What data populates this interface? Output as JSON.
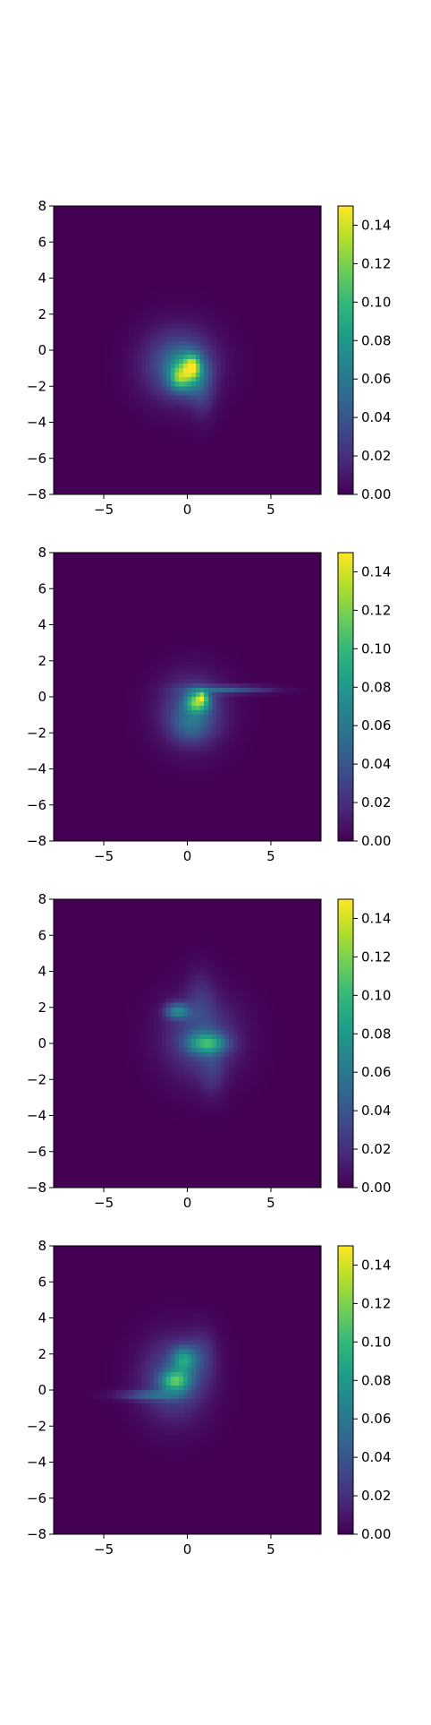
{
  "figure": {
    "title": ""
  },
  "colormap": {
    "name": "viridis",
    "stops": [
      "#440154",
      "#482878",
      "#3e4989",
      "#31688e",
      "#26828e",
      "#1f9e89",
      "#35b779",
      "#6ece58",
      "#b5de2b",
      "#fde725"
    ]
  },
  "chart_data": [
    {
      "type": "heatmap",
      "title": "",
      "xlabel": "",
      "ylabel": "",
      "xlim": [
        -8,
        8
      ],
      "ylim": [
        -8,
        8
      ],
      "x_ticks": [
        -5,
        0,
        5
      ],
      "x_tick_labels": [
        "−5",
        "0",
        "5"
      ],
      "y_ticks": [
        -8,
        -6,
        -4,
        -2,
        0,
        2,
        4,
        6,
        8
      ],
      "y_tick_labels": [
        "−8",
        "−6",
        "−4",
        "−2",
        "0",
        "2",
        "4",
        "6",
        "8"
      ],
      "colorbar": {
        "min": 0.0,
        "max": 0.15,
        "ticks": [
          0.0,
          0.02,
          0.04,
          0.06,
          0.08,
          0.1,
          0.12,
          0.14
        ],
        "tick_labels": [
          "0.00",
          "0.02",
          "0.04",
          "0.06",
          "0.08",
          "0.10",
          "0.12",
          "0.14"
        ]
      },
      "blobs": [
        {
          "x": -0.5,
          "y": -0.8,
          "sx": 1.4,
          "sy": 1.3,
          "value": 0.05
        },
        {
          "x": 0.0,
          "y": -1.2,
          "sx": 0.7,
          "sy": 0.7,
          "value": 0.07
        },
        {
          "x": 0.3,
          "y": -0.9,
          "sx": 0.3,
          "sy": 0.4,
          "value": 0.06
        },
        {
          "x": -0.5,
          "y": -1.6,
          "sx": 0.4,
          "sy": 0.4,
          "value": 0.04
        },
        {
          "x": 0.9,
          "y": -2.4,
          "sx": 0.5,
          "sy": 1.0,
          "value": 0.018
        }
      ]
    },
    {
      "type": "heatmap",
      "title": "",
      "xlabel": "",
      "ylabel": "",
      "xlim": [
        -8,
        8
      ],
      "ylim": [
        -8,
        8
      ],
      "x_ticks": [
        -5,
        0,
        5
      ],
      "x_tick_labels": [
        "−5",
        "0",
        "5"
      ],
      "y_ticks": [
        -8,
        -6,
        -4,
        -2,
        0,
        2,
        4,
        6,
        8
      ],
      "y_tick_labels": [
        "−8",
        "−6",
        "−4",
        "−2",
        "0",
        "2",
        "4",
        "6",
        "8"
      ],
      "colorbar": {
        "min": 0.0,
        "max": 0.15,
        "ticks": [
          0.0,
          0.02,
          0.04,
          0.06,
          0.08,
          0.1,
          0.12,
          0.14
        ],
        "tick_labels": [
          "0.00",
          "0.02",
          "0.04",
          "0.06",
          "0.08",
          "0.10",
          "0.12",
          "0.14"
        ]
      },
      "blobs": [
        {
          "x": 0.3,
          "y": -0.8,
          "sx": 1.3,
          "sy": 1.3,
          "value": 0.04
        },
        {
          "x": 0.6,
          "y": -0.3,
          "sx": 0.5,
          "sy": 0.4,
          "value": 0.09
        },
        {
          "x": 0.9,
          "y": 0.0,
          "sx": 0.2,
          "sy": 0.2,
          "value": 0.06
        },
        {
          "x": 2.5,
          "y": 0.4,
          "sx": 1.7,
          "sy": 0.15,
          "value": 0.04
        },
        {
          "x": 0.2,
          "y": -1.6,
          "sx": 0.8,
          "sy": 0.6,
          "value": 0.025
        }
      ]
    },
    {
      "type": "heatmap",
      "title": "",
      "xlabel": "",
      "ylabel": "",
      "xlim": [
        -8,
        8
      ],
      "ylim": [
        -8,
        8
      ],
      "x_ticks": [
        -5,
        0,
        5
      ],
      "x_tick_labels": [
        "−5",
        "0",
        "5"
      ],
      "y_ticks": [
        -8,
        -6,
        -4,
        -2,
        0,
        2,
        4,
        6,
        8
      ],
      "y_tick_labels": [
        "−8",
        "−6",
        "−4",
        "−2",
        "0",
        "2",
        "4",
        "6",
        "8"
      ],
      "colorbar": {
        "min": 0.0,
        "max": 0.15,
        "ticks": [
          0.0,
          0.02,
          0.04,
          0.06,
          0.08,
          0.1,
          0.12,
          0.14
        ],
        "tick_labels": [
          "0.00",
          "0.02",
          "0.04",
          "0.06",
          "0.08",
          "0.10",
          "0.12",
          "0.14"
        ]
      },
      "blobs": [
        {
          "x": 0.8,
          "y": 0.3,
          "sx": 1.5,
          "sy": 1.5,
          "value": 0.035
        },
        {
          "x": 1.2,
          "y": 0.0,
          "sx": 0.8,
          "sy": 0.4,
          "value": 0.07
        },
        {
          "x": -0.6,
          "y": 1.8,
          "sx": 0.5,
          "sy": 0.3,
          "value": 0.06
        },
        {
          "x": 1.5,
          "y": -1.6,
          "sx": 0.5,
          "sy": 1.0,
          "value": 0.015
        },
        {
          "x": 0.8,
          "y": 2.4,
          "sx": 0.6,
          "sy": 1.2,
          "value": 0.015
        }
      ]
    },
    {
      "type": "heatmap",
      "title": "",
      "xlabel": "",
      "ylabel": "",
      "xlim": [
        -8,
        8
      ],
      "ylim": [
        -8,
        8
      ],
      "x_ticks": [
        -5,
        0,
        5
      ],
      "x_tick_labels": [
        "−5",
        "0",
        "5"
      ],
      "y_ticks": [
        -8,
        -6,
        -4,
        -2,
        0,
        2,
        4,
        6,
        8
      ],
      "y_tick_labels": [
        "−8",
        "−6",
        "−4",
        "−2",
        "0",
        "2",
        "4",
        "6",
        "8"
      ],
      "colorbar": {
        "min": 0.0,
        "max": 0.15,
        "ticks": [
          0.0,
          0.02,
          0.04,
          0.06,
          0.08,
          0.1,
          0.12,
          0.14
        ],
        "tick_labels": [
          "0.00",
          "0.02",
          "0.04",
          "0.06",
          "0.08",
          "0.10",
          "0.12",
          "0.14"
        ]
      },
      "blobs": [
        {
          "x": -0.8,
          "y": 0.6,
          "sx": 1.3,
          "sy": 1.5,
          "value": 0.04
        },
        {
          "x": -0.7,
          "y": 0.5,
          "sx": 0.6,
          "sy": 0.4,
          "value": 0.075
        },
        {
          "x": -0.2,
          "y": 1.7,
          "sx": 0.5,
          "sy": 0.5,
          "value": 0.06
        },
        {
          "x": -2.3,
          "y": -0.3,
          "sx": 1.3,
          "sy": 0.2,
          "value": 0.035
        },
        {
          "x": 0.9,
          "y": 1.9,
          "sx": 0.6,
          "sy": 1.0,
          "value": 0.02
        }
      ]
    }
  ]
}
